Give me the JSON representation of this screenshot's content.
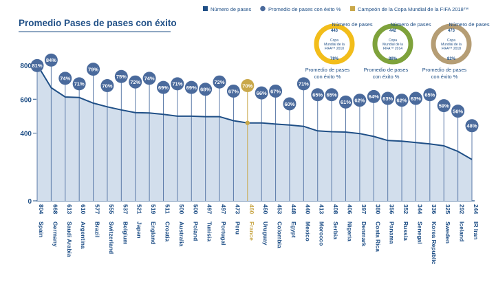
{
  "chart_data": {
    "type": "line",
    "title": "Promedio Pases de pases con éxito",
    "legend": [
      {
        "label": "Número de pases",
        "color": "#1f4f86",
        "shape": "square"
      },
      {
        "label": "Promedio de pases con éxito %",
        "color": "#4a6a9c",
        "shape": "circle"
      },
      {
        "label": "Campeón de la Copa Mundial de la FIFA 2018™",
        "color": "#c9a84a",
        "shape": "square"
      }
    ],
    "ylim": [
      0,
      900
    ],
    "yticks": [
      0,
      400,
      600,
      800
    ],
    "highlight_category": "France",
    "categories": [
      "Spain",
      "Germany",
      "Saudi Arabia",
      "Argentina",
      "Brazil",
      "Switzerland",
      "Belgium",
      "Japan",
      "England",
      "Croatia",
      "Australia",
      "Poland",
      "Tunisia",
      "Portugal",
      "Peru",
      "France",
      "Uruguay",
      "Colombia",
      "Egypt",
      "Mexico",
      "Morocco",
      "Serbia",
      "Nigeria",
      "Denmark",
      "Costa Rica",
      "Panama",
      "Russia",
      "Senegal",
      "Korea Republic",
      "Sweden",
      "Iceland",
      "IR Iran"
    ],
    "series": [
      {
        "name": "Número de pases",
        "values": [
          804,
          668,
          613,
          610,
          577,
          555,
          537,
          521,
          519,
          511,
          500,
          500,
          497,
          497,
          473,
          460,
          460,
          453,
          448,
          440,
          413,
          408,
          406,
          397,
          380,
          356,
          352,
          344,
          336,
          325,
          292,
          244
        ]
      },
      {
        "name": "Promedio de pases con éxito %",
        "values": [
          81,
          84,
          74,
          71,
          79,
          70,
          75,
          72,
          74,
          69,
          71,
          69,
          68,
          72,
          67,
          70,
          66,
          67,
          60,
          71,
          65,
          65,
          61,
          62,
          64,
          63,
          62,
          63,
          65,
          59,
          56,
          48
        ]
      }
    ],
    "value_labels": [
      "804",
      "668",
      "613",
      "610",
      "577",
      "555",
      "537",
      "521",
      "519",
      "511",
      "500",
      "500",
      "497",
      "497",
      "473",
      "460",
      "460",
      "453",
      "448",
      "440",
      "413",
      "408",
      "406",
      "397",
      "380",
      "356",
      "352",
      "344",
      "336",
      "325",
      "292",
      "244"
    ],
    "pct_labels": [
      "81%",
      "84%",
      "74%",
      "71%",
      "79%",
      "70%",
      "75%",
      "72%",
      "74%",
      "69%",
      "71%",
      "69%",
      "68%",
      "72%",
      "67%",
      "70%",
      "66%",
      "67%",
      "60%",
      "71%",
      "65%",
      "65%",
      "61%",
      "62%",
      "64%",
      "63%",
      "62%",
      "63%",
      "65%",
      "59%",
      "56%",
      "48%"
    ]
  },
  "donuts": [
    {
      "top_label": "Número de pases",
      "bottom_label": "Promedio de pases con éxito %",
      "center": [
        "Copa",
        "Mundial de la",
        "FIFA™ 2010"
      ],
      "passes": "443",
      "pct": "78%",
      "color": "#f2bd1a"
    },
    {
      "top_label": "Número de pases",
      "bottom_label": "Promedio de pases con éxito %",
      "center": [
        "Copa",
        "Mundial de la",
        "FIFA™ 2014"
      ],
      "passes": "442",
      "pct": "88%",
      "color": "#7ea23b"
    },
    {
      "top_label": "Número de pases",
      "bottom_label": "Promedio de pases con éxito %",
      "center": [
        "Copa",
        "Mundial de la",
        "FIFA™ 2018"
      ],
      "passes": "473",
      "pct": "82%",
      "color": "#b59d74"
    }
  ],
  "colors": {
    "navy": "#1f4f86",
    "marker": "#4a6a9c",
    "gold": "#c9a84a",
    "area": "#d2deec"
  }
}
